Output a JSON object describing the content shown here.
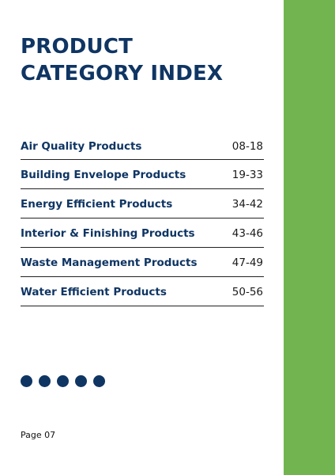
{
  "colors": {
    "accent_green": "#72b550",
    "navy": "#0f3563"
  },
  "title": {
    "line1": "PRODUCT",
    "line2": "CATEGORY INDEX"
  },
  "index": [
    {
      "label": "Air Quality Products",
      "pages": "08-18"
    },
    {
      "label": "Building Envelope Products",
      "pages": "19-33"
    },
    {
      "label": "Energy Efficient Products",
      "pages": "34-42"
    },
    {
      "label": "Interior & Finishing Products",
      "pages": "43-46"
    },
    {
      "label": "Waste Management Products",
      "pages": "47-49"
    },
    {
      "label": "Water Efficient Products",
      "pages": "50-56"
    }
  ],
  "decorative_dots": 5,
  "footer": {
    "page_label": "Page 07"
  }
}
